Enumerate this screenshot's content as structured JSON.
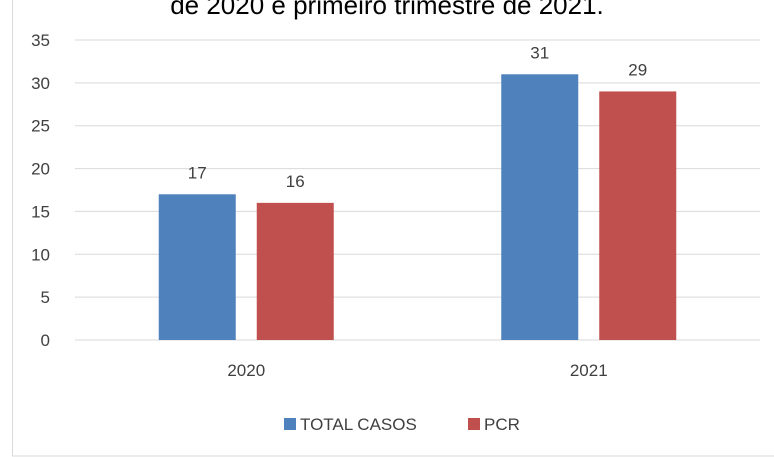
{
  "chart_data": {
    "type": "bar",
    "title": "de 2020 e primeiro trimestre de 2021.",
    "categories": [
      "2020",
      "2021"
    ],
    "series": [
      {
        "name": "TOTAL CASOS",
        "color": "#4f81bd",
        "values": [
          17,
          31
        ]
      },
      {
        "name": "PCR",
        "color": "#c0504d",
        "values": [
          16,
          29
        ]
      }
    ],
    "ylim": [
      0,
      35
    ],
    "yticks": [
      0,
      5,
      10,
      15,
      20,
      25,
      30,
      35
    ],
    "grid": true,
    "legend": "bottom"
  }
}
